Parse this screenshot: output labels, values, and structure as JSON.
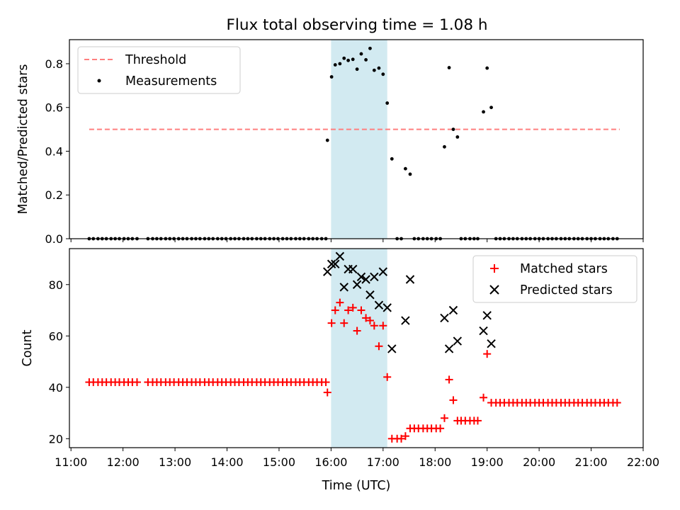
{
  "title": "Flux total observing time = 1.08 h",
  "colors": {
    "threshold": "#ff7f7f",
    "measurement": "#000000",
    "matched": "#ff0000",
    "predicted": "#000000",
    "band": "#add8e6"
  },
  "chart_data": [
    {
      "type": "scatter",
      "ylabel": "Matched/Predicted stars",
      "xlim": [
        10.97,
        22.0
      ],
      "ylim": [
        0,
        0.91
      ],
      "yticks": [
        0.0,
        0.2,
        0.4,
        0.6,
        0.8
      ],
      "ytick_labels": [
        "0.0",
        "0.2",
        "0.4",
        "0.6",
        "0.8"
      ],
      "legend": {
        "placement": "upper-left",
        "entries": [
          "Threshold",
          "Measurements"
        ]
      },
      "threshold": {
        "name": "Threshold",
        "value": 0.5,
        "x": [
          11.35,
          21.55
        ]
      },
      "highlight_band": [
        16.0,
        17.08
      ],
      "measurements": {
        "name": "Measurements",
        "x": [
          11.35,
          11.43,
          11.52,
          11.6,
          11.68,
          11.77,
          11.85,
          11.93,
          12.02,
          12.1,
          12.18,
          12.27,
          12.48,
          12.57,
          12.65,
          12.73,
          12.82,
          12.9,
          12.98,
          13.07,
          13.15,
          13.23,
          13.32,
          13.4,
          13.48,
          13.57,
          13.65,
          13.73,
          13.82,
          13.9,
          13.98,
          14.07,
          14.15,
          14.23,
          14.32,
          14.4,
          14.48,
          14.57,
          14.65,
          14.73,
          14.82,
          14.9,
          14.98,
          15.07,
          15.15,
          15.23,
          15.32,
          15.4,
          15.48,
          15.57,
          15.65,
          15.73,
          15.82,
          15.9,
          15.93,
          16.01,
          16.08,
          16.17,
          16.25,
          16.33,
          16.42,
          16.5,
          16.58,
          16.67,
          16.75,
          16.83,
          16.92,
          17.0,
          17.08,
          17.17,
          17.27,
          17.35,
          17.43,
          17.52,
          17.6,
          17.68,
          17.77,
          17.85,
          17.93,
          18.02,
          18.1,
          18.18,
          18.27,
          18.35,
          18.43,
          18.5,
          18.58,
          18.67,
          18.75,
          18.82,
          18.93,
          19.0,
          19.08,
          19.17,
          19.25,
          19.33,
          19.42,
          19.5,
          19.58,
          19.67,
          19.75,
          19.83,
          19.92,
          20.0,
          20.08,
          20.17,
          20.25,
          20.33,
          20.42,
          20.5,
          20.58,
          20.67,
          20.75,
          20.83,
          20.92,
          21.0,
          21.08,
          21.17,
          21.25,
          21.33,
          21.42,
          21.5
        ],
        "y": [
          0,
          0,
          0,
          0,
          0,
          0,
          0,
          0,
          0,
          0,
          0,
          0,
          0,
          0,
          0,
          0,
          0,
          0,
          0,
          0,
          0,
          0,
          0,
          0,
          0,
          0,
          0,
          0,
          0,
          0,
          0,
          0,
          0,
          0,
          0,
          0,
          0,
          0,
          0,
          0,
          0,
          0,
          0,
          0,
          0,
          0,
          0,
          0,
          0,
          0,
          0,
          0,
          0,
          0,
          0.45,
          0.74,
          0.795,
          0.8,
          0.825,
          0.815,
          0.82,
          0.775,
          0.845,
          0.818,
          0.87,
          0.77,
          0.78,
          0.752,
          0.62,
          0.365,
          0,
          0,
          0.32,
          0.295,
          0,
          0,
          0,
          0,
          0,
          0,
          0,
          0.42,
          0.782,
          0.5,
          0.465,
          0,
          0,
          0,
          0,
          0,
          0.58,
          0.78,
          0.6,
          0,
          0,
          0,
          0,
          0,
          0,
          0,
          0,
          0,
          0,
          0,
          0,
          0,
          0,
          0,
          0,
          0,
          0,
          0,
          0,
          0,
          0,
          0,
          0,
          0,
          0,
          0,
          0,
          0
        ]
      }
    },
    {
      "type": "scatter",
      "xlabel": "Time (UTC)",
      "ylabel": "Count",
      "xlim": [
        10.97,
        22.0
      ],
      "ylim": [
        16.5,
        94
      ],
      "xticks": [
        11,
        12,
        13,
        14,
        15,
        16,
        17,
        18,
        19,
        20,
        21,
        22
      ],
      "xtick_labels": [
        "11:00",
        "12:00",
        "13:00",
        "14:00",
        "15:00",
        "16:00",
        "17:00",
        "18:00",
        "19:00",
        "20:00",
        "21:00",
        "22:00"
      ],
      "yticks": [
        20,
        40,
        60,
        80
      ],
      "ytick_labels": [
        "20",
        "40",
        "60",
        "80"
      ],
      "legend": {
        "placement": "upper-right",
        "entries": [
          "Matched stars",
          "Predicted stars"
        ]
      },
      "highlight_band": [
        16.0,
        17.08
      ],
      "series": [
        {
          "name": "Matched stars",
          "marker": "+",
          "x": [
            11.35,
            11.43,
            11.52,
            11.6,
            11.68,
            11.77,
            11.85,
            11.93,
            12.02,
            12.1,
            12.18,
            12.27,
            12.48,
            12.57,
            12.65,
            12.73,
            12.82,
            12.9,
            12.98,
            13.07,
            13.15,
            13.23,
            13.32,
            13.4,
            13.48,
            13.57,
            13.65,
            13.73,
            13.82,
            13.9,
            13.98,
            14.07,
            14.15,
            14.23,
            14.32,
            14.4,
            14.48,
            14.57,
            14.65,
            14.73,
            14.82,
            14.9,
            14.98,
            15.07,
            15.15,
            15.23,
            15.32,
            15.4,
            15.48,
            15.57,
            15.65,
            15.73,
            15.82,
            15.9,
            15.93,
            16.01,
            16.08,
            16.17,
            16.25,
            16.33,
            16.42,
            16.5,
            16.58,
            16.67,
            16.75,
            16.83,
            16.92,
            17.0,
            17.08,
            17.17,
            17.27,
            17.35,
            17.43,
            17.52,
            17.6,
            17.68,
            17.77,
            17.85,
            17.93,
            18.02,
            18.1,
            18.18,
            18.27,
            18.35,
            18.43,
            18.5,
            18.58,
            18.67,
            18.75,
            18.82,
            18.93,
            19.0,
            19.08,
            19.17,
            19.25,
            19.33,
            19.42,
            19.5,
            19.58,
            19.67,
            19.75,
            19.83,
            19.92,
            20.0,
            20.08,
            20.17,
            20.25,
            20.33,
            20.42,
            20.5,
            20.58,
            20.67,
            20.75,
            20.83,
            20.92,
            21.0,
            21.08,
            21.17,
            21.25,
            21.33,
            21.42,
            21.5
          ],
          "y": [
            42,
            42,
            42,
            42,
            42,
            42,
            42,
            42,
            42,
            42,
            42,
            42,
            42,
            42,
            42,
            42,
            42,
            42,
            42,
            42,
            42,
            42,
            42,
            42,
            42,
            42,
            42,
            42,
            42,
            42,
            42,
            42,
            42,
            42,
            42,
            42,
            42,
            42,
            42,
            42,
            42,
            42,
            42,
            42,
            42,
            42,
            42,
            42,
            42,
            42,
            42,
            42,
            42,
            42,
            38,
            65,
            70,
            73,
            65,
            70,
            71,
            62,
            70,
            67,
            66,
            64,
            56,
            64,
            44,
            20,
            20,
            20,
            21,
            24,
            24,
            24,
            24,
            24,
            24,
            24,
            24,
            28,
            43,
            35,
            27,
            27,
            27,
            27,
            27,
            27,
            36,
            53,
            34,
            34,
            34,
            34,
            34,
            34,
            34,
            34,
            34,
            34,
            34,
            34,
            34,
            34,
            34,
            34,
            34,
            34,
            34,
            34,
            34,
            34,
            34,
            34,
            34,
            34,
            34,
            34,
            34,
            34
          ]
        },
        {
          "name": "Predicted stars",
          "marker": "x",
          "x": [
            15.93,
            16.01,
            16.08,
            16.17,
            16.25,
            16.33,
            16.42,
            16.5,
            16.58,
            16.67,
            16.75,
            16.83,
            16.92,
            17.0,
            17.08,
            17.17,
            17.43,
            17.52,
            18.18,
            18.27,
            18.35,
            18.43,
            18.93,
            19.0,
            19.08
          ],
          "y": [
            85,
            88,
            88,
            91,
            79,
            86,
            86,
            80,
            83,
            82,
            76,
            83,
            72,
            85,
            71,
            55,
            66,
            82,
            67,
            55,
            70,
            58,
            62,
            68,
            57
          ]
        }
      ]
    }
  ]
}
